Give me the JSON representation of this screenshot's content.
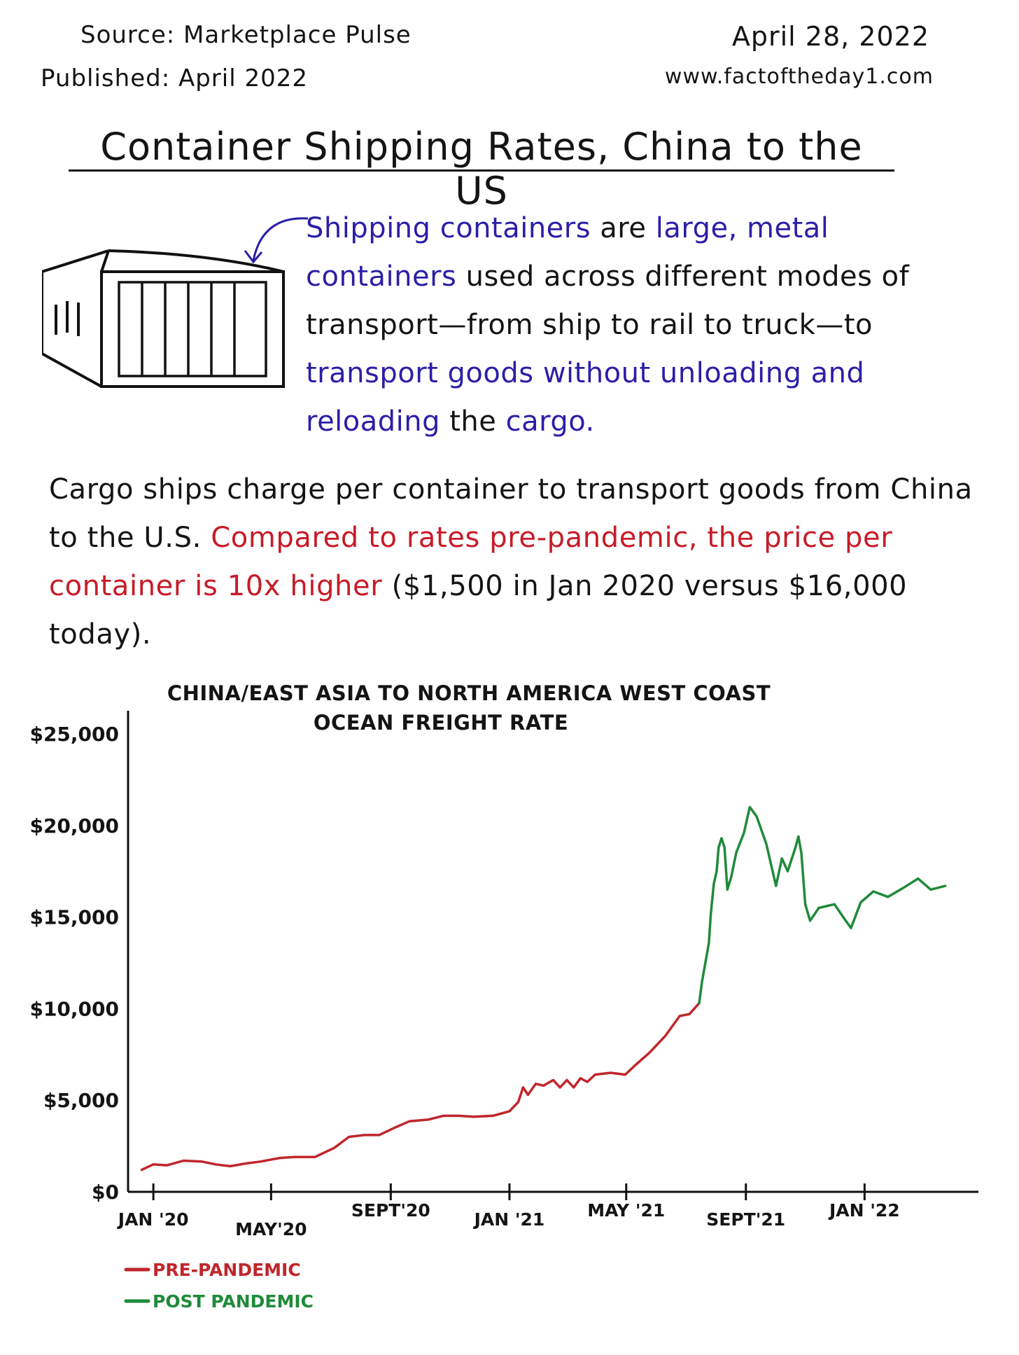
{
  "header": {
    "source": "Source: Marketplace Pulse",
    "published": "Published: April 2022",
    "date": "April 28, 2022",
    "website": "www.factoftheday1.com"
  },
  "title": "Container Shipping Rates, China to the US",
  "definition": {
    "p1": "Shipping containers",
    "p2": " are ",
    "p3": "large, metal containers",
    "p4": " used across different modes of transport—from ship to rail to truck—to ",
    "p5": "transport goods without unloading and reloading",
    "p6": " the ",
    "p7": "cargo."
  },
  "paragraph": {
    "p1": "Cargo ships charge per container to transport goods from China to the U.S. ",
    "p2": "Compared to rates pre-pandemic, the price per container is 10x higher",
    "p3": " ($1,500 in Jan 2020 versus $16,000 today)."
  },
  "colors": {
    "blue_text": "#2a1fa8",
    "red_text": "#c71b28",
    "pre_pandemic": "#c0262c",
    "post_pandemic": "#1f8a3a"
  },
  "chart_data": {
    "type": "line",
    "title_line1": "CHINA/EAST ASIA TO NORTH AMERICA WEST COAST",
    "title_line2": "OCEAN FREIGHT RATE",
    "xlabel": "",
    "ylabel": "",
    "ylim": [
      0,
      25000
    ],
    "xlim": [
      "2019-12-06",
      "2022-04-28"
    ],
    "y_ticks": [
      {
        "value": 0,
        "label": "$0"
      },
      {
        "value": 5000,
        "label": "$5,000"
      },
      {
        "value": 10000,
        "label": "$10,000"
      },
      {
        "value": 15000,
        "label": "$15,000"
      },
      {
        "value": 20000,
        "label": "$20,000"
      },
      {
        "value": 25000,
        "label": "$25,000"
      }
    ],
    "x_ticks": [
      {
        "date": "2020-01-01",
        "label": "JAN '20",
        "pos": "low"
      },
      {
        "date": "2020-05-01",
        "label": "MAY'20",
        "pos": "lower"
      },
      {
        "date": "2020-09-01",
        "label": "SEPT'20",
        "pos": "high"
      },
      {
        "date": "2021-01-01",
        "label": "JAN '21",
        "pos": "low"
      },
      {
        "date": "2021-05-01",
        "label": "MAY '21",
        "pos": "high"
      },
      {
        "date": "2021-09-01",
        "label": "SEPT'21",
        "pos": "low"
      },
      {
        "date": "2022-01-01",
        "label": "JAN '22",
        "pos": "high"
      }
    ],
    "legend": {
      "placement": "bottom-left",
      "entries": [
        "PRE-PANDEMIC",
        "POST PANDEMIC"
      ]
    },
    "series": [
      {
        "name": "PRE-PANDEMIC",
        "color": "#c0262c",
        "points": [
          [
            "2019-12-20",
            1200
          ],
          [
            "2020-01-01",
            1500
          ],
          [
            "2020-01-15",
            1450
          ],
          [
            "2020-02-01",
            1700
          ],
          [
            "2020-02-20",
            1650
          ],
          [
            "2020-03-05",
            1500
          ],
          [
            "2020-03-20",
            1400
          ],
          [
            "2020-04-05",
            1550
          ],
          [
            "2020-04-20",
            1650
          ],
          [
            "2020-05-10",
            1850
          ],
          [
            "2020-05-25",
            1900
          ],
          [
            "2020-06-15",
            1900
          ],
          [
            "2020-07-05",
            2400
          ],
          [
            "2020-07-20",
            3000
          ],
          [
            "2020-08-05",
            3100
          ],
          [
            "2020-08-20",
            3100
          ],
          [
            "2020-09-05",
            3500
          ],
          [
            "2020-09-20",
            3850
          ],
          [
            "2020-10-10",
            3950
          ],
          [
            "2020-10-25",
            4150
          ],
          [
            "2020-11-10",
            4150
          ],
          [
            "2020-11-25",
            4100
          ],
          [
            "2020-12-15",
            4150
          ],
          [
            "2021-01-01",
            4400
          ],
          [
            "2021-01-10",
            4900
          ],
          [
            "2021-01-15",
            5700
          ],
          [
            "2021-01-20",
            5300
          ],
          [
            "2021-01-28",
            5900
          ],
          [
            "2021-02-05",
            5800
          ],
          [
            "2021-02-15",
            6100
          ],
          [
            "2021-02-22",
            5700
          ],
          [
            "2021-03-01",
            6100
          ],
          [
            "2021-03-08",
            5700
          ],
          [
            "2021-03-15",
            6200
          ],
          [
            "2021-03-22",
            6000
          ],
          [
            "2021-03-30",
            6400
          ],
          [
            "2021-04-15",
            6500
          ],
          [
            "2021-04-30",
            6400
          ],
          [
            "2021-05-10",
            6900
          ],
          [
            "2021-05-25",
            7600
          ],
          [
            "2021-06-10",
            8500
          ],
          [
            "2021-06-25",
            9600
          ],
          [
            "2021-07-05",
            9700
          ],
          [
            "2021-07-15",
            10300
          ]
        ]
      },
      {
        "name": "POST PANDEMIC",
        "color": "#1f8a3a",
        "points": [
          [
            "2021-07-15",
            10300
          ],
          [
            "2021-07-18",
            11500
          ],
          [
            "2021-07-22",
            12700
          ],
          [
            "2021-07-25",
            13600
          ],
          [
            "2021-07-27",
            15200
          ],
          [
            "2021-07-30",
            16800
          ],
          [
            "2021-08-02",
            17500
          ],
          [
            "2021-08-04",
            18800
          ],
          [
            "2021-08-07",
            19300
          ],
          [
            "2021-08-10",
            18800
          ],
          [
            "2021-08-13",
            16500
          ],
          [
            "2021-08-17",
            17200
          ],
          [
            "2021-08-22",
            18500
          ],
          [
            "2021-08-30",
            19600
          ],
          [
            "2021-09-05",
            21000
          ],
          [
            "2021-09-12",
            20500
          ],
          [
            "2021-09-22",
            19000
          ],
          [
            "2021-10-02",
            16700
          ],
          [
            "2021-10-08",
            18200
          ],
          [
            "2021-10-14",
            17500
          ],
          [
            "2021-10-22",
            18800
          ],
          [
            "2021-10-25",
            19400
          ],
          [
            "2021-10-28",
            18500
          ],
          [
            "2021-11-01",
            15700
          ],
          [
            "2021-11-06",
            14800
          ],
          [
            "2021-11-15",
            15500
          ],
          [
            "2021-12-01",
            15700
          ],
          [
            "2021-12-10",
            15000
          ],
          [
            "2021-12-18",
            14400
          ],
          [
            "2021-12-28",
            15800
          ],
          [
            "2022-01-10",
            16400
          ],
          [
            "2022-01-25",
            16100
          ],
          [
            "2022-02-10",
            16600
          ],
          [
            "2022-02-25",
            17100
          ],
          [
            "2022-03-10",
            16500
          ],
          [
            "2022-03-25",
            16700
          ]
        ]
      }
    ]
  }
}
